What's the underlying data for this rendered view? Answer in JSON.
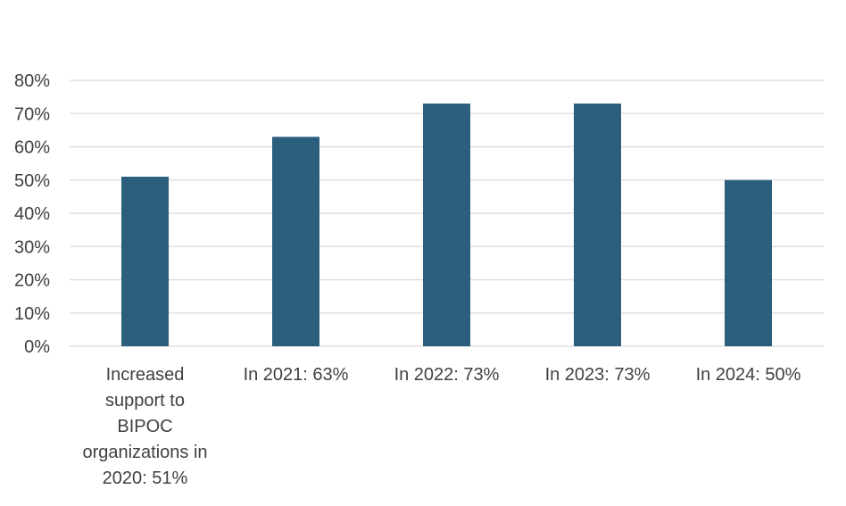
{
  "chart_data": {
    "type": "bar",
    "categories": [
      [
        "Increased",
        "support to",
        "BIPOC",
        "organizations in",
        "2020: 51%"
      ],
      [
        "In 2021: 63%"
      ],
      [
        "In 2022: 73%"
      ],
      [
        "In 2023: 73%"
      ],
      [
        "In 2024: 50%"
      ]
    ],
    "values": [
      0.51,
      0.63,
      0.73,
      0.73,
      0.5
    ],
    "ylim": [
      0,
      0.8
    ],
    "yticks": [
      "0%",
      "10%",
      "20%",
      "30%",
      "40%",
      "50%",
      "60%",
      "70%",
      "80%"
    ],
    "title": "",
    "xlabel": "",
    "ylabel": "",
    "grid": true,
    "legend": "none",
    "colors": {
      "bar": "#2B5F7D",
      "grid": "#D9D9D9",
      "text": "#404040"
    }
  }
}
